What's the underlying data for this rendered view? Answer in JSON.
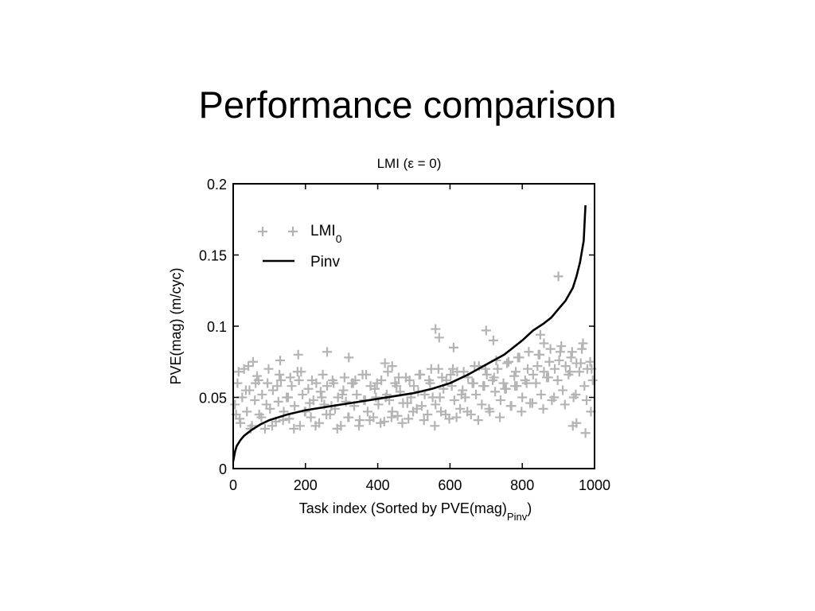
{
  "slide": {
    "title": "Performance comparison"
  },
  "chart_data": {
    "type": "scatter",
    "title": "LMI (ε = 0)",
    "xlabel": "Task index (Sorted by PVE(mag)",
    "xlabel_sub": "Pinv",
    "xlabel_end": ")",
    "ylabel": "PVE(mag)  (m/cyc)",
    "xlim": [
      0,
      1000
    ],
    "ylim": [
      0,
      0.2
    ],
    "xticks": [
      0,
      200,
      400,
      600,
      800,
      1000
    ],
    "xtick_labels": [
      "0",
      "200",
      "400",
      "600",
      "800",
      "1000"
    ],
    "yticks": [
      0,
      0.05,
      0.1,
      0.15,
      0.2
    ],
    "ytick_labels": [
      "0",
      "0.05",
      "0.1",
      "0.15",
      "0.2"
    ],
    "grid": false,
    "legend_position": "top-left",
    "series": [
      {
        "name": "LMI",
        "name_sub": "0",
        "kind": "markers",
        "marker": "plus",
        "color": "#b4b4b4",
        "x": [
          5,
          12,
          18,
          25,
          30,
          38,
          45,
          52,
          60,
          66,
          72,
          80,
          88,
          95,
          102,
          110,
          118,
          125,
          132,
          140,
          148,
          155,
          162,
          170,
          178,
          185,
          192,
          200,
          208,
          215,
          222,
          230,
          238,
          245,
          252,
          260,
          268,
          275,
          282,
          290,
          298,
          305,
          312,
          320,
          328,
          335,
          342,
          350,
          358,
          365,
          372,
          380,
          388,
          395,
          402,
          410,
          418,
          425,
          432,
          440,
          448,
          455,
          462,
          470,
          478,
          485,
          492,
          500,
          508,
          515,
          522,
          530,
          538,
          545,
          552,
          560,
          568,
          575,
          582,
          590,
          598,
          605,
          612,
          620,
          628,
          635,
          642,
          650,
          658,
          665,
          672,
          680,
          688,
          695,
          702,
          710,
          718,
          725,
          732,
          740,
          748,
          755,
          762,
          770,
          778,
          785,
          792,
          800,
          808,
          815,
          822,
          830,
          838,
          845,
          852,
          860,
          868,
          875,
          882,
          890,
          898,
          905,
          912,
          920,
          928,
          935,
          942,
          950,
          958,
          965,
          972,
          980,
          988,
          995,
          8,
          20,
          35,
          48,
          62,
          78,
          92,
          108,
          122,
          138,
          152,
          168,
          182,
          198,
          212,
          228,
          242,
          258,
          272,
          288,
          302,
          318,
          332,
          348,
          362,
          378,
          392,
          408,
          422,
          438,
          452,
          468,
          482,
          498,
          512,
          528,
          542,
          558,
          572,
          588,
          602,
          618,
          632,
          648,
          662,
          678,
          692,
          708,
          722,
          738,
          752,
          768,
          782,
          798,
          812,
          828,
          842,
          858,
          872,
          888,
          902,
          918,
          932,
          948,
          962,
          978,
          992,
          15,
          42,
          70,
          98,
          128,
          158,
          188,
          218,
          248,
          278,
          308,
          338,
          368,
          398,
          428,
          458,
          488,
          518,
          548,
          578,
          608,
          638,
          668,
          698,
          728,
          758,
          788,
          818,
          848,
          878,
          908,
          938,
          968,
          55,
          180,
          320,
          440,
          560,
          570,
          700,
          780,
          860,
          900,
          950,
          975,
          990,
          420,
          260,
          130,
          610,
          720,
          850,
          940
        ],
        "y": [
          0.045,
          0.06,
          0.035,
          0.05,
          0.07,
          0.04,
          0.055,
          0.03,
          0.048,
          0.065,
          0.038,
          0.052,
          0.028,
          0.06,
          0.042,
          0.055,
          0.033,
          0.047,
          0.062,
          0.04,
          0.05,
          0.035,
          0.058,
          0.044,
          0.068,
          0.03,
          0.052,
          0.04,
          0.056,
          0.036,
          0.048,
          0.06,
          0.032,
          0.05,
          0.045,
          0.058,
          0.038,
          0.062,
          0.042,
          0.05,
          0.03,
          0.055,
          0.047,
          0.036,
          0.06,
          0.044,
          0.052,
          0.034,
          0.066,
          0.048,
          0.04,
          0.058,
          0.036,
          0.05,
          0.045,
          0.062,
          0.033,
          0.052,
          0.048,
          0.04,
          0.06,
          0.037,
          0.054,
          0.046,
          0.064,
          0.035,
          0.05,
          0.058,
          0.042,
          0.066,
          0.044,
          0.052,
          0.038,
          0.06,
          0.05,
          0.045,
          0.07,
          0.04,
          0.056,
          0.062,
          0.035,
          0.058,
          0.048,
          0.068,
          0.042,
          0.055,
          0.05,
          0.064,
          0.038,
          0.06,
          0.052,
          0.072,
          0.045,
          0.058,
          0.066,
          0.04,
          0.062,
          0.054,
          0.07,
          0.048,
          0.06,
          0.056,
          0.075,
          0.044,
          0.065,
          0.058,
          0.078,
          0.05,
          0.062,
          0.07,
          0.046,
          0.066,
          0.06,
          0.08,
          0.052,
          0.068,
          0.064,
          0.075,
          0.048,
          0.07,
          0.062,
          0.082,
          0.055,
          0.072,
          0.066,
          0.078,
          0.05,
          0.074,
          0.068,
          0.084,
          0.058,
          0.07,
          0.075,
          0.062,
          0.038,
          0.032,
          0.055,
          0.028,
          0.06,
          0.036,
          0.045,
          0.03,
          0.058,
          0.034,
          0.05,
          0.028,
          0.062,
          0.04,
          0.046,
          0.03,
          0.054,
          0.038,
          0.044,
          0.028,
          0.052,
          0.036,
          0.06,
          0.03,
          0.048,
          0.034,
          0.056,
          0.032,
          0.05,
          0.036,
          0.058,
          0.032,
          0.046,
          0.04,
          0.054,
          0.034,
          0.062,
          0.03,
          0.05,
          0.038,
          0.066,
          0.036,
          0.052,
          0.04,
          0.06,
          0.034,
          0.058,
          0.042,
          0.064,
          0.036,
          0.056,
          0.044,
          0.068,
          0.04,
          0.06,
          0.046,
          0.072,
          0.042,
          0.064,
          0.05,
          0.076,
          0.045,
          0.068,
          0.052,
          0.074,
          0.048,
          0.07,
          0.068,
          0.072,
          0.062,
          0.07,
          0.066,
          0.064,
          0.068,
          0.062,
          0.066,
          0.06,
          0.064,
          0.062,
          0.066,
          0.06,
          0.068,
          0.064,
          0.062,
          0.066,
          0.07,
          0.064,
          0.07,
          0.068,
          0.072,
          0.07,
          0.076,
          0.074,
          0.078,
          0.082,
          0.08,
          0.084,
          0.086,
          0.082,
          0.088,
          0.075,
          0.08,
          0.078,
          0.072,
          0.098,
          0.092,
          0.097,
          0.058,
          0.088,
          0.135,
          0.032,
          0.025,
          0.04,
          0.074,
          0.082,
          0.076,
          0.085,
          0.09,
          0.094,
          0.03
        ]
      },
      {
        "name": "Pinv",
        "kind": "line",
        "color": "#000000",
        "x": [
          0,
          5,
          10,
          20,
          30,
          50,
          75,
          100,
          150,
          200,
          250,
          300,
          350,
          400,
          450,
          500,
          550,
          600,
          650,
          700,
          750,
          800,
          830,
          860,
          880,
          900,
          920,
          940,
          950,
          960,
          970,
          975
        ],
        "y": [
          0.005,
          0.012,
          0.016,
          0.02,
          0.023,
          0.027,
          0.031,
          0.034,
          0.038,
          0.041,
          0.043,
          0.045,
          0.047,
          0.049,
          0.051,
          0.053,
          0.056,
          0.06,
          0.066,
          0.073,
          0.08,
          0.09,
          0.097,
          0.102,
          0.106,
          0.112,
          0.118,
          0.127,
          0.135,
          0.145,
          0.16,
          0.185
        ]
      }
    ]
  }
}
